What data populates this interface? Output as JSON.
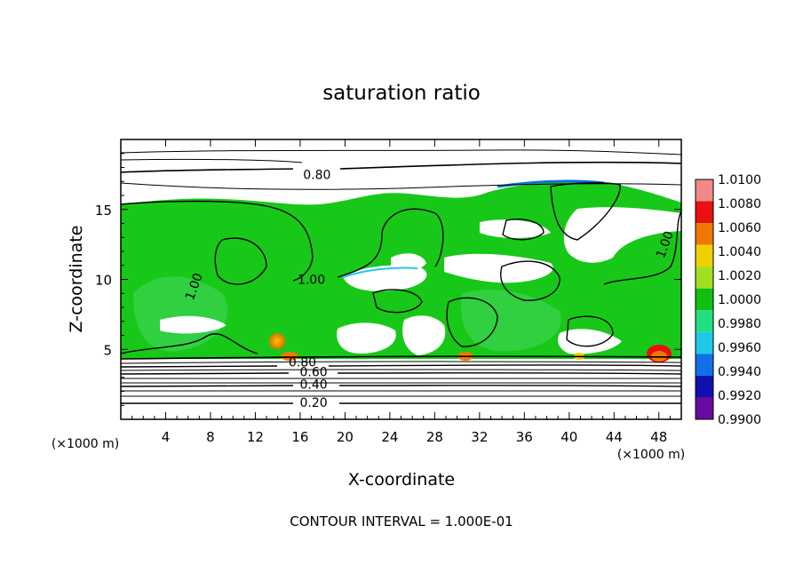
{
  "chart_data": {
    "type": "heatmap",
    "title": "saturation ratio",
    "xlabel": "X-coordinate",
    "ylabel": "Z-coordinate",
    "x_unit": "(×1000 m)",
    "x_ticks": [
      4,
      8,
      12,
      16,
      20,
      24,
      28,
      32,
      36,
      40,
      44,
      48
    ],
    "y_ticks": [
      5,
      10,
      15
    ],
    "xlim": [
      0,
      50
    ],
    "ylim": [
      0,
      20
    ],
    "footer": "CONTOUR INTERVAL = 1.000E-01",
    "colorbar": {
      "levels": [
        "1.0100",
        "1.0080",
        "1.0060",
        "1.0040",
        "1.0020",
        "1.0000",
        "0.9980",
        "0.9960",
        "0.9940",
        "0.9920",
        "0.9900"
      ],
      "colors": [
        "#f08a8a",
        "#e81010",
        "#f07800",
        "#f0d000",
        "#a0e020",
        "#10c010",
        "#20e080",
        "#20c8e8",
        "#1070e8",
        "#1010b0",
        "#6a0aa0"
      ]
    },
    "contour_labels": [
      {
        "text": "0.80",
        "x": 17.5,
        "y": 17.5
      },
      {
        "text": "1.00",
        "x": 17.0,
        "y": 10.0
      },
      {
        "text": "1.00",
        "x": 6.5,
        "y": 9.5
      },
      {
        "text": "1.00",
        "x": 48.5,
        "y": 12.5
      },
      {
        "text": "0.80",
        "x": 16.2,
        "y": 4.1
      },
      {
        "text": "0.60",
        "x": 17.2,
        "y": 3.4
      },
      {
        "text": "0.40",
        "x": 17.2,
        "y": 2.5
      },
      {
        "text": "0.20",
        "x": 17.2,
        "y": 1.2
      }
    ]
  }
}
